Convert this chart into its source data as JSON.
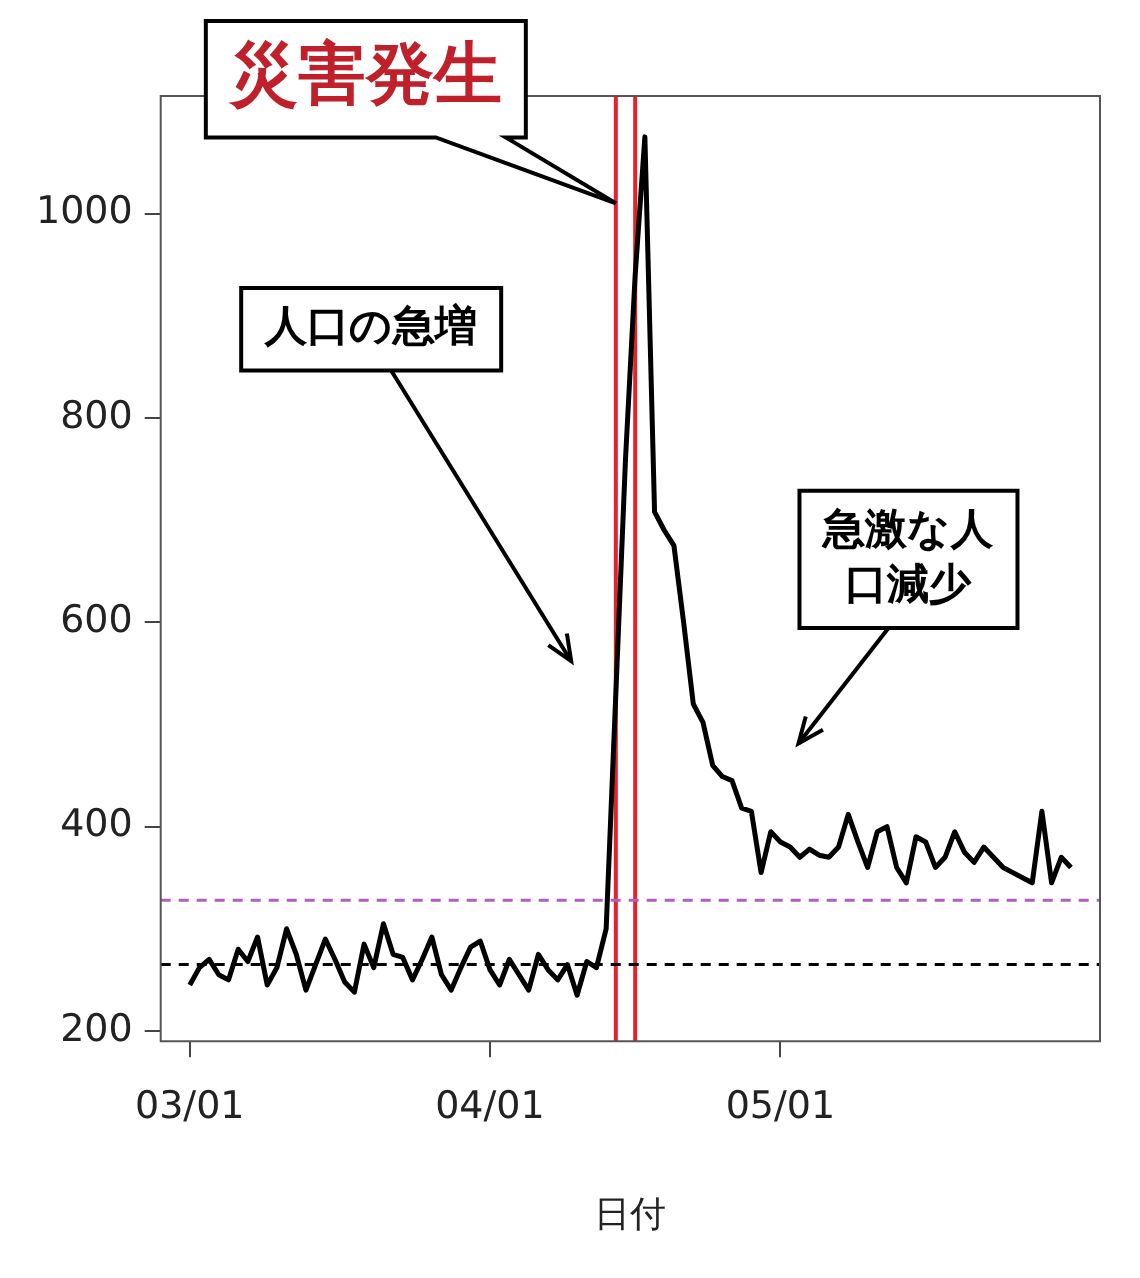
{
  "chart_data": {
    "type": "line",
    "xlabel": "日付",
    "x": [
      "--03-01",
      "--03-02",
      "--03-03",
      "--03-04",
      "--03-05",
      "--03-06",
      "--03-07",
      "--03-08",
      "--03-09",
      "--03-10",
      "--03-11",
      "--03-12",
      "--03-13",
      "--03-14",
      "--03-15",
      "--03-16",
      "--03-17",
      "--03-18",
      "--03-19",
      "--03-20",
      "--03-21",
      "--03-22",
      "--03-23",
      "--03-24",
      "--03-25",
      "--03-26",
      "--03-27",
      "--03-28",
      "--03-29",
      "--03-30",
      "--03-31",
      "--04-01",
      "--04-02",
      "--04-03",
      "--04-04",
      "--04-05",
      "--04-06",
      "--04-07",
      "--04-08",
      "--04-09",
      "--04-10",
      "--04-11",
      "--04-12",
      "--04-13",
      "--04-14",
      "--04-15",
      "--04-16",
      "--04-17",
      "--04-18",
      "--04-19",
      "--04-20",
      "--04-21",
      "--04-22",
      "--04-23",
      "--04-24",
      "--04-25",
      "--04-26",
      "--04-27",
      "--04-28",
      "--04-29",
      "--04-30",
      "--05-01",
      "--05-02",
      "--05-03",
      "--05-04",
      "--05-05",
      "--05-06",
      "--05-07",
      "--05-08",
      "--05-09",
      "--05-10",
      "--05-11",
      "--05-12",
      "--05-13",
      "--05-14",
      "--05-15",
      "--05-16",
      "--05-17",
      "--05-18",
      "--05-19",
      "--05-20",
      "--05-21",
      "--05-22",
      "--05-23",
      "--05-24",
      "--05-25",
      "--05-26",
      "--05-27",
      "--05-28",
      "--05-29",
      "--05-30",
      "--05-31"
    ],
    "series": [
      {
        "color": "#000000",
        "values": [
          245,
          262,
          270,
          255,
          250,
          280,
          268,
          292,
          245,
          262,
          300,
          275,
          240,
          265,
          290,
          270,
          248,
          238,
          285,
          262,
          305,
          275,
          272,
          250,
          270,
          292,
          255,
          240,
          262,
          282,
          288,
          260,
          245,
          270,
          255,
          240,
          275,
          260,
          250,
          265,
          235,
          268,
          262,
          300,
          530,
          760,
          940,
          1075,
          708,
          690,
          675,
          600,
          520,
          502,
          460,
          449,
          445,
          418,
          415,
          355,
          395,
          385,
          380,
          370,
          378,
          372,
          370,
          380,
          412,
          385,
          360,
          395,
          400,
          360,
          345,
          390,
          385,
          360,
          370,
          395,
          375,
          365,
          380,
          370,
          360,
          355,
          350,
          345,
          415,
          345,
          370,
          360
        ]
      }
    ],
    "xlim": [
      "--02-26",
      "--06-03"
    ],
    "xticks": [
      {
        "value": "--03-01",
        "label": "03/01"
      },
      {
        "value": "--04-01",
        "label": "04/01"
      },
      {
        "value": "--05-01",
        "label": "05/01"
      }
    ],
    "ylim": [
      190,
      1115
    ],
    "yticks": [
      200,
      400,
      600,
      800,
      1000
    ],
    "ref_lines": [
      {
        "axis": "x",
        "value": "--04-14",
        "color": "#e8202a"
      },
      {
        "axis": "x",
        "value": "--04-16",
        "color": "#e8202a"
      },
      {
        "axis": "y",
        "value": 265,
        "color": "#000000",
        "line_style": "dashed"
      },
      {
        "axis": "y",
        "value": 328,
        "color": "#b060c0",
        "line_style": "dashed"
      }
    ],
    "annotations": [
      {
        "text": "災害発生",
        "x": "--04-14",
        "y": 1010
      },
      "人口の急増",
      "急激な人口減少"
    ]
  }
}
